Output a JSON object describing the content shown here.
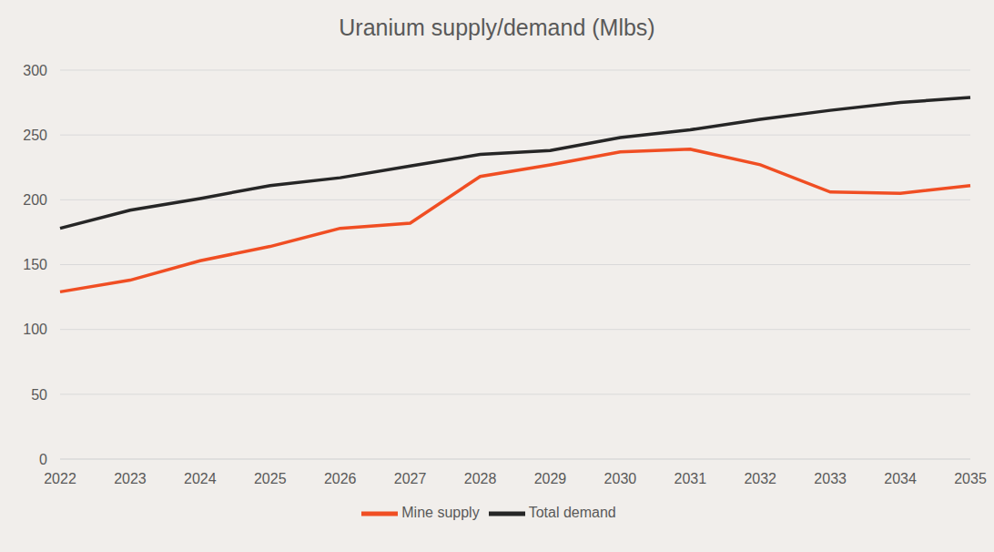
{
  "chart_data": {
    "type": "line",
    "title": "Uranium supply/demand (Mlbs)",
    "categories": [
      "2022",
      "2023",
      "2024",
      "2025",
      "2026",
      "2027",
      "2028",
      "2029",
      "2030",
      "2031",
      "2032",
      "2033",
      "2034",
      "2035"
    ],
    "series": [
      {
        "name": "Mine supply",
        "color": "#f04e23",
        "values": [
          129,
          138,
          153,
          164,
          178,
          182,
          218,
          227,
          237,
          239,
          227,
          206,
          205,
          211
        ]
      },
      {
        "name": "Total demand",
        "color": "#262626",
        "values": [
          178,
          192,
          201,
          211,
          217,
          226,
          235,
          238,
          248,
          254,
          262,
          269,
          275,
          279
        ]
      }
    ],
    "ylim": [
      0,
      300
    ],
    "yticks": [
      0,
      50,
      100,
      150,
      200,
      250,
      300
    ],
    "grid": true,
    "legend": "bottom"
  }
}
